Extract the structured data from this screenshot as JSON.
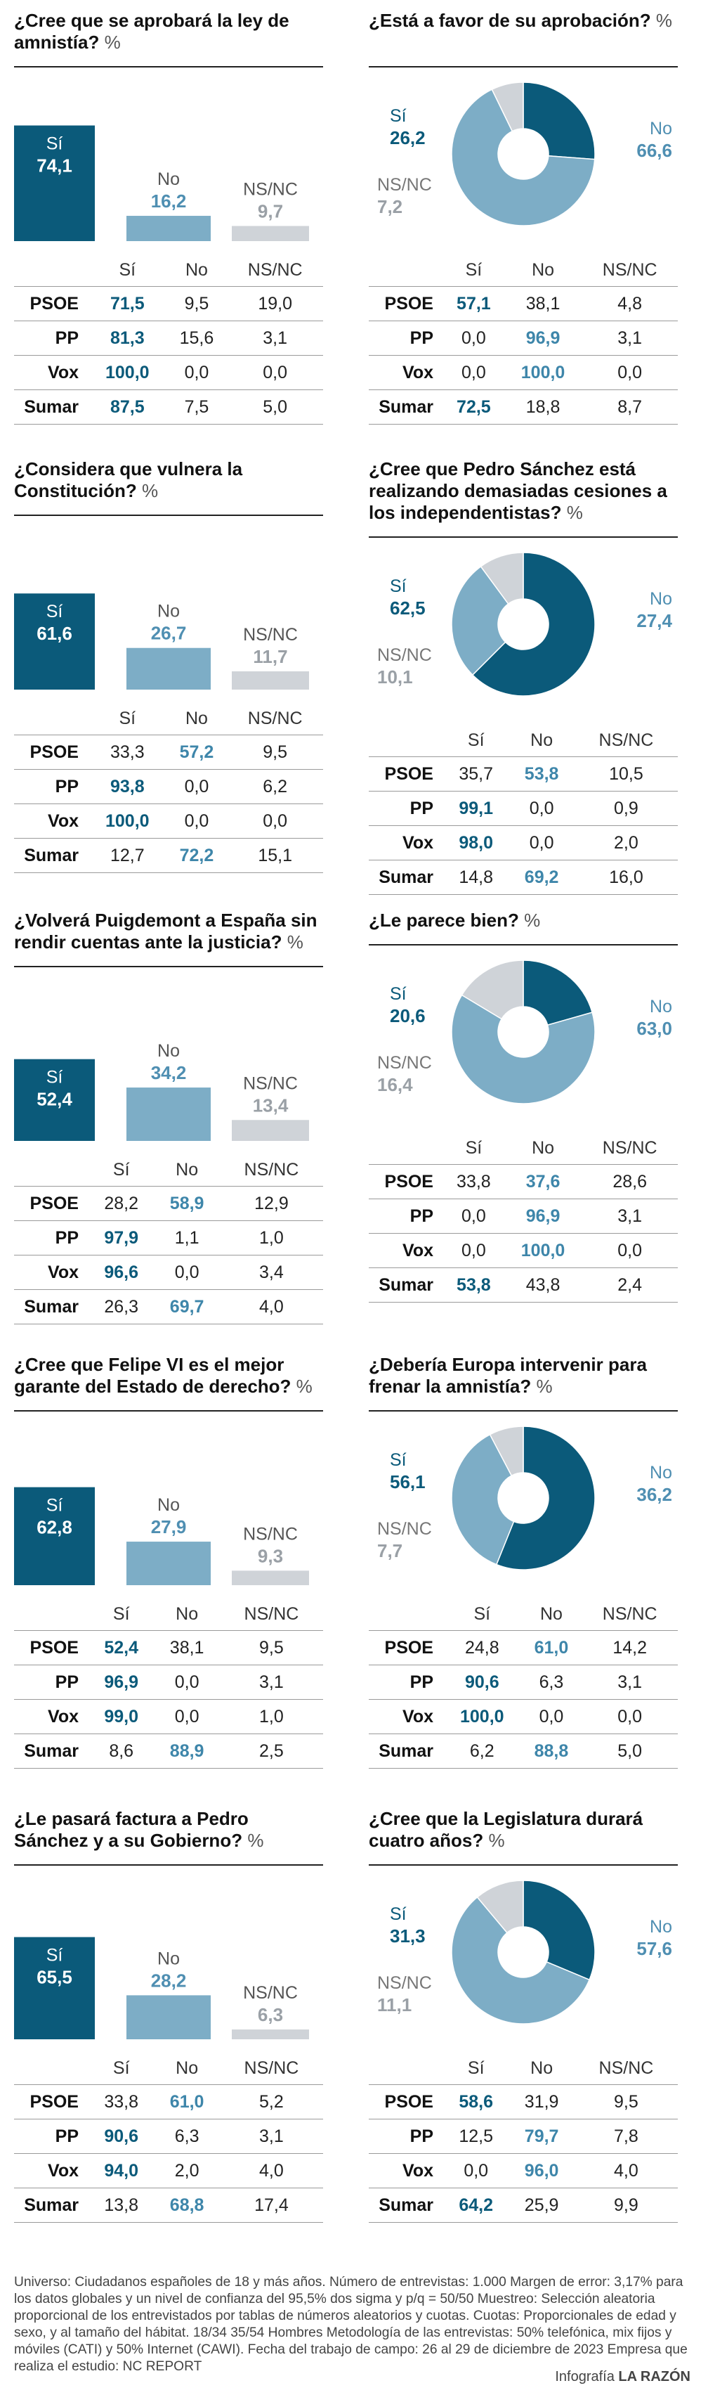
{
  "colors": {
    "si": "#0b5a7a",
    "no": "#7dadc6",
    "nsnc": "#cfd3d8",
    "si_text_on_bar": "#ffffff",
    "no_text": "#4f8fb2",
    "nsnc_text": "#9aa0a6"
  },
  "legend_labels": {
    "si": "Sí",
    "no": "No",
    "nsnc": "NS/NC"
  },
  "table_headers": [
    "Sí",
    "No",
    "NS/NC"
  ],
  "percent_sign": "%",
  "panels": [
    {
      "id": "p1",
      "title": "¿Cree que se aprobará la ley de amnistía?",
      "chart_data": {
        "type": "bar",
        "categories": [
          "Sí",
          "No",
          "NS/NC"
        ],
        "values": [
          74.1,
          16.2,
          9.7
        ],
        "value_labels": [
          "74,1",
          "16,2",
          "9,7"
        ]
      },
      "rows": [
        {
          "party": "PSOE",
          "values": [
            "71,5",
            "9,5",
            "19,0"
          ],
          "highlight": 0
        },
        {
          "party": "PP",
          "values": [
            "81,3",
            "15,6",
            "3,1"
          ],
          "highlight": 0
        },
        {
          "party": "Vox",
          "values": [
            "100,0",
            "0,0",
            "0,0"
          ],
          "highlight": 0
        },
        {
          "party": "Sumar",
          "values": [
            "87,5",
            "7,5",
            "5,0"
          ],
          "highlight": 0
        }
      ]
    },
    {
      "id": "p2",
      "title": "¿Está a favor de su aprobación?",
      "chart_data": {
        "type": "pie",
        "categories": [
          "Sí",
          "No",
          "NS/NC"
        ],
        "values": [
          26.2,
          66.6,
          7.2
        ],
        "value_labels": [
          "26,2",
          "66,6",
          "7,2"
        ]
      },
      "rows": [
        {
          "party": "PSOE",
          "values": [
            "57,1",
            "38,1",
            "4,8"
          ],
          "highlight": 0
        },
        {
          "party": "PP",
          "values": [
            "0,0",
            "96,9",
            "3,1"
          ],
          "highlight": 1
        },
        {
          "party": "Vox",
          "values": [
            "0,0",
            "100,0",
            "0,0"
          ],
          "highlight": 1
        },
        {
          "party": "Sumar",
          "values": [
            "72,5",
            "18,8",
            "8,7"
          ],
          "highlight": 0
        }
      ]
    },
    {
      "id": "p3",
      "title": "¿Considera que vulnera la Constitución?",
      "chart_data": {
        "type": "bar",
        "categories": [
          "Sí",
          "No",
          "NS/NC"
        ],
        "values": [
          61.6,
          26.7,
          11.7
        ],
        "value_labels": [
          "61,6",
          "26,7",
          "11,7"
        ]
      },
      "rows": [
        {
          "party": "PSOE",
          "values": [
            "33,3",
            "57,2",
            "9,5"
          ],
          "highlight": 1
        },
        {
          "party": "PP",
          "values": [
            "93,8",
            "0,0",
            "6,2"
          ],
          "highlight": 0
        },
        {
          "party": "Vox",
          "values": [
            "100,0",
            "0,0",
            "0,0"
          ],
          "highlight": 0
        },
        {
          "party": "Sumar",
          "values": [
            "12,7",
            "72,2",
            "15,1"
          ],
          "highlight": 1
        }
      ]
    },
    {
      "id": "p4",
      "title": "¿Cree que Pedro Sánchez está realizando demasiadas cesiones a los independentistas?",
      "chart_data": {
        "type": "pie",
        "categories": [
          "Sí",
          "No",
          "NS/NC"
        ],
        "values": [
          62.5,
          27.4,
          10.1
        ],
        "value_labels": [
          "62,5",
          "27,4",
          "10,1"
        ]
      },
      "rows": [
        {
          "party": "PSOE",
          "values": [
            "35,7",
            "53,8",
            "10,5"
          ],
          "highlight": 1
        },
        {
          "party": "PP",
          "values": [
            "99,1",
            "0,0",
            "0,9"
          ],
          "highlight": 0
        },
        {
          "party": "Vox",
          "values": [
            "98,0",
            "0,0",
            "2,0"
          ],
          "highlight": 0
        },
        {
          "party": "Sumar",
          "values": [
            "14,8",
            "69,2",
            "16,0"
          ],
          "highlight": 1
        }
      ]
    },
    {
      "id": "p5",
      "title": "¿Volverá Puigdemont a España sin rendir cuentas ante la justicia?",
      "chart_data": {
        "type": "bar",
        "categories": [
          "Sí",
          "No",
          "NS/NC"
        ],
        "values": [
          52.4,
          34.2,
          13.4
        ],
        "value_labels": [
          "52,4",
          "34,2",
          "13,4"
        ]
      },
      "rows": [
        {
          "party": "PSOE",
          "values": [
            "28,2",
            "58,9",
            "12,9"
          ],
          "highlight": 1
        },
        {
          "party": "PP",
          "values": [
            "97,9",
            "1,1",
            "1,0"
          ],
          "highlight": 0
        },
        {
          "party": "Vox",
          "values": [
            "96,6",
            "0,0",
            "3,4"
          ],
          "highlight": 0
        },
        {
          "party": "Sumar",
          "values": [
            "26,3",
            "69,7",
            "4,0"
          ],
          "highlight": 1
        }
      ]
    },
    {
      "id": "p6",
      "title": "¿Le parece bien?",
      "chart_data": {
        "type": "pie",
        "categories": [
          "Sí",
          "No",
          "NS/NC"
        ],
        "values": [
          20.6,
          63.0,
          16.4
        ],
        "value_labels": [
          "20,6",
          "63,0",
          "16,4"
        ]
      },
      "rows": [
        {
          "party": "PSOE",
          "values": [
            "33,8",
            "37,6",
            "28,6"
          ],
          "highlight": 1
        },
        {
          "party": "PP",
          "values": [
            "0,0",
            "96,9",
            "3,1"
          ],
          "highlight": 1
        },
        {
          "party": "Vox",
          "values": [
            "0,0",
            "100,0",
            "0,0"
          ],
          "highlight": 1
        },
        {
          "party": "Sumar",
          "values": [
            "53,8",
            "43,8",
            "2,4"
          ],
          "highlight": 0
        }
      ]
    },
    {
      "id": "p7",
      "title": "¿Cree que Felipe VI es el mejor garante del Estado de derecho?",
      "chart_data": {
        "type": "bar",
        "categories": [
          "Sí",
          "No",
          "NS/NC"
        ],
        "values": [
          62.8,
          27.9,
          9.3
        ],
        "value_labels": [
          "62,8",
          "27,9",
          "9,3"
        ]
      },
      "rows": [
        {
          "party": "PSOE",
          "values": [
            "52,4",
            "38,1",
            "9,5"
          ],
          "highlight": 0
        },
        {
          "party": "PP",
          "values": [
            "96,9",
            "0,0",
            "3,1"
          ],
          "highlight": 0
        },
        {
          "party": "Vox",
          "values": [
            "99,0",
            "0,0",
            "1,0"
          ],
          "highlight": 0
        },
        {
          "party": "Sumar",
          "values": [
            "8,6",
            "88,9",
            "2,5"
          ],
          "highlight": 1
        }
      ]
    },
    {
      "id": "p8",
      "title": "¿Debería Europa intervenir para frenar la amnistía?",
      "chart_data": {
        "type": "pie",
        "categories": [
          "Sí",
          "No",
          "NS/NC"
        ],
        "values": [
          56.1,
          36.2,
          7.7
        ],
        "value_labels": [
          "56,1",
          "36,2",
          "7,7"
        ]
      },
      "rows": [
        {
          "party": "PSOE",
          "values": [
            "24,8",
            "61,0",
            "14,2"
          ],
          "highlight": 1
        },
        {
          "party": "PP",
          "values": [
            "90,6",
            "6,3",
            "3,1"
          ],
          "highlight": 0
        },
        {
          "party": "Vox",
          "values": [
            "100,0",
            "0,0",
            "0,0"
          ],
          "highlight": 0
        },
        {
          "party": "Sumar",
          "values": [
            "6,2",
            "88,8",
            "5,0"
          ],
          "highlight": 1
        }
      ]
    },
    {
      "id": "p9",
      "title": "¿Le pasará factura a Pedro Sánchez y a su Gobierno?",
      "chart_data": {
        "type": "bar",
        "categories": [
          "Sí",
          "No",
          "NS/NC"
        ],
        "values": [
          65.5,
          28.2,
          6.3
        ],
        "value_labels": [
          "65,5",
          "28,2",
          "6,3"
        ]
      },
      "rows": [
        {
          "party": "PSOE",
          "values": [
            "33,8",
            "61,0",
            "5,2"
          ],
          "highlight": 1
        },
        {
          "party": "PP",
          "values": [
            "90,6",
            "6,3",
            "3,1"
          ],
          "highlight": 0
        },
        {
          "party": "Vox",
          "values": [
            "94,0",
            "2,0",
            "4,0"
          ],
          "highlight": 0
        },
        {
          "party": "Sumar",
          "values": [
            "13,8",
            "68,8",
            "17,4"
          ],
          "highlight": 1
        }
      ]
    },
    {
      "id": "p10",
      "title": "¿Cree que la Legislatura durará cuatro años?",
      "chart_data": {
        "type": "pie",
        "categories": [
          "Sí",
          "No",
          "NS/NC"
        ],
        "values": [
          31.3,
          57.6,
          11.1
        ],
        "value_labels": [
          "31,3",
          "57,6",
          "11,1"
        ]
      },
      "rows": [
        {
          "party": "PSOE",
          "values": [
            "58,6",
            "31,9",
            "9,5"
          ],
          "highlight": 0
        },
        {
          "party": "PP",
          "values": [
            "12,5",
            "79,7",
            "7,8"
          ],
          "highlight": 1
        },
        {
          "party": "Vox",
          "values": [
            "0,0",
            "96,0",
            "4,0"
          ],
          "highlight": 1
        },
        {
          "party": "Sumar",
          "values": [
            "64,2",
            "25,9",
            "9,9"
          ],
          "highlight": 0
        }
      ]
    }
  ],
  "footer": {
    "methodology": "Universo: Ciudadanos españoles de 18 y más años. Número de entrevistas: 1.000 Margen de error: 3,17% para los datos globales y un nivel de confianza del 95,5% dos sigma y p/q = 50/50 Muestreo: Selección aleatoria proporcional de los entrevistados por tablas de números aleatorios y cuotas. Cuotas: Proporcionales de edad y sexo, y al tamaño del hábitat. 18/34 35/54 Hombres Metodología de las entrevistas: 50% telefónica, mix fijos y móviles (CATI) y 50% Internet (CAWI). Fecha del trabajo de campo: 26 al 29 de diciembre de 2023 Empresa que realiza el estudio: NC REPORT",
    "credit_prefix": "Infografía",
    "credit_brand": "LA RAZÓN"
  }
}
